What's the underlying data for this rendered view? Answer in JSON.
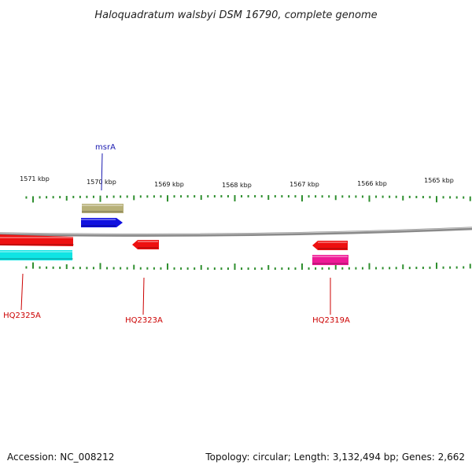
{
  "title": "Haloquadratum walsbyi DSM 16790, complete genome",
  "scale": {
    "labels": [
      "1571 kbp",
      "1570 kbp",
      "1569 kbp",
      "1568 kbp",
      "1567 kbp",
      "1566 kbp",
      "1565 kbp"
    ]
  },
  "features": [
    {
      "name": "upper-gene-olive",
      "label": "",
      "strand": "plus",
      "color": "#b7b078"
    },
    {
      "name": "msrA-gene",
      "label": "msrA",
      "strand": "plus",
      "color": "#1010e0",
      "label_color": "#1a1ab0"
    },
    {
      "name": "HQ2325A-gene",
      "label": "HQ2325A",
      "strand": "minus",
      "color": "#ee1010",
      "label_color": "#cc0000"
    },
    {
      "name": "lower-gene-cyan",
      "label": "",
      "strand": "minus",
      "color": "#10e4e4"
    },
    {
      "name": "HQ2323A-gene",
      "label": "HQ2323A",
      "strand": "minus",
      "color": "#ee1010",
      "label_color": "#cc0000"
    },
    {
      "name": "HQ2319A-gene",
      "label": "HQ2319A",
      "strand": "minus",
      "color": "#ee1010",
      "label_color": "#cc0000"
    },
    {
      "name": "lower-gene-magenta",
      "label": "",
      "strand": "minus",
      "color": "#ee1a96"
    }
  ],
  "colors": {
    "backbone": "#8a8a8a",
    "tick": "#2f8f2f"
  },
  "footer": {
    "accession": "Accession: NC_008212",
    "stats": "Topology: circular; Length: 3,132,494 bp; Genes: 2,662"
  }
}
